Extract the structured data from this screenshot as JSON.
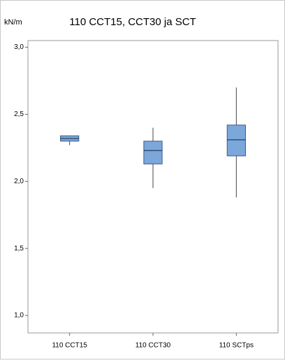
{
  "chart_data": {
    "type": "box",
    "title": "110 CCT15, CCT30 ja SCT",
    "y_label": "kN/m",
    "categories": [
      "110 CCT15",
      "110 CCT30",
      "110 SCTps"
    ],
    "boxes": [
      {
        "min": 2.27,
        "q1": 2.3,
        "median": 2.32,
        "q3": 2.34,
        "max": 2.34
      },
      {
        "min": 1.95,
        "q1": 2.13,
        "median": 2.23,
        "q3": 2.3,
        "max": 2.4
      },
      {
        "min": 1.88,
        "q1": 2.19,
        "median": 2.31,
        "q3": 2.42,
        "max": 2.7
      }
    ],
    "color": "#7ba7db",
    "ylim": [
      0.87,
      3.05
    ],
    "yticks": [
      {
        "value": 1,
        "label": "1,0"
      },
      {
        "value": 1.5,
        "label": "1,5"
      },
      {
        "value": 2,
        "label": "2,0"
      },
      {
        "value": 2.5,
        "label": "2,5"
      },
      {
        "value": 3,
        "label": "3,0"
      }
    ]
  }
}
